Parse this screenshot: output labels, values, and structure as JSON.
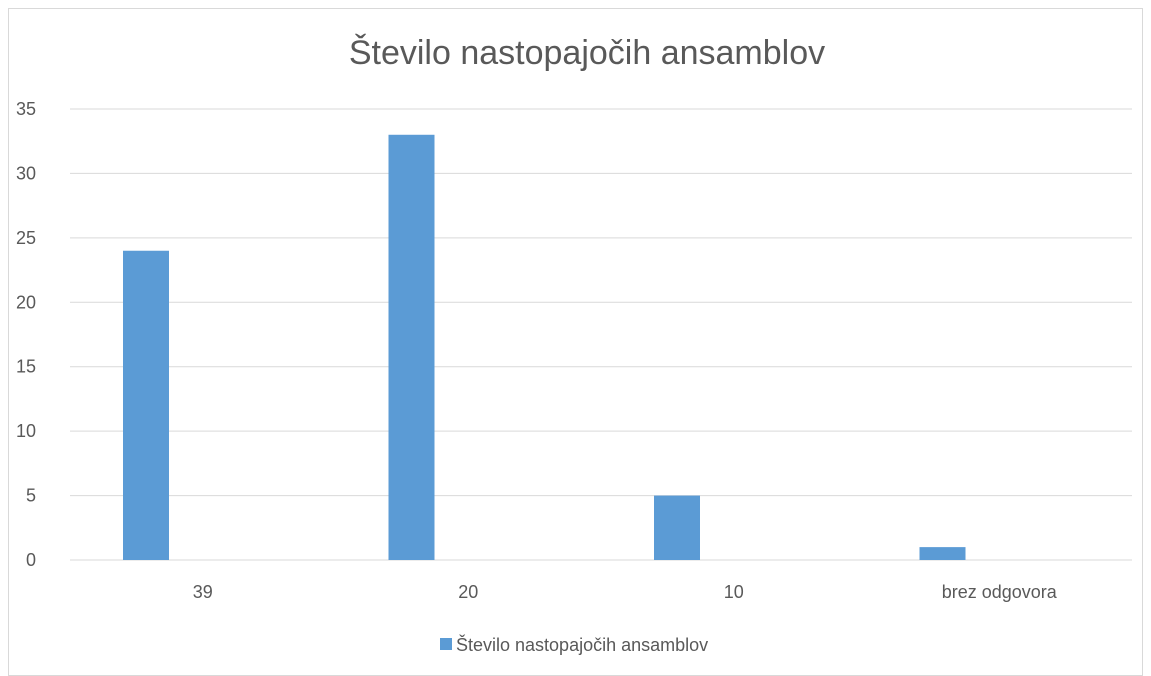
{
  "chart_data": {
    "type": "bar",
    "title": "Število nastopajočih ansamblov",
    "categories": [
      "39",
      "20",
      "10",
      "brez odgovora"
    ],
    "series": [
      {
        "name": "Število nastopajočih ansamblov",
        "values": [
          24,
          33,
          5,
          1
        ],
        "color": "#5b9bd5"
      }
    ],
    "ylim": [
      0,
      35
    ],
    "yticks": [
      0,
      5,
      10,
      15,
      20,
      25,
      30,
      35
    ],
    "grid": true,
    "legend": "bottom"
  }
}
